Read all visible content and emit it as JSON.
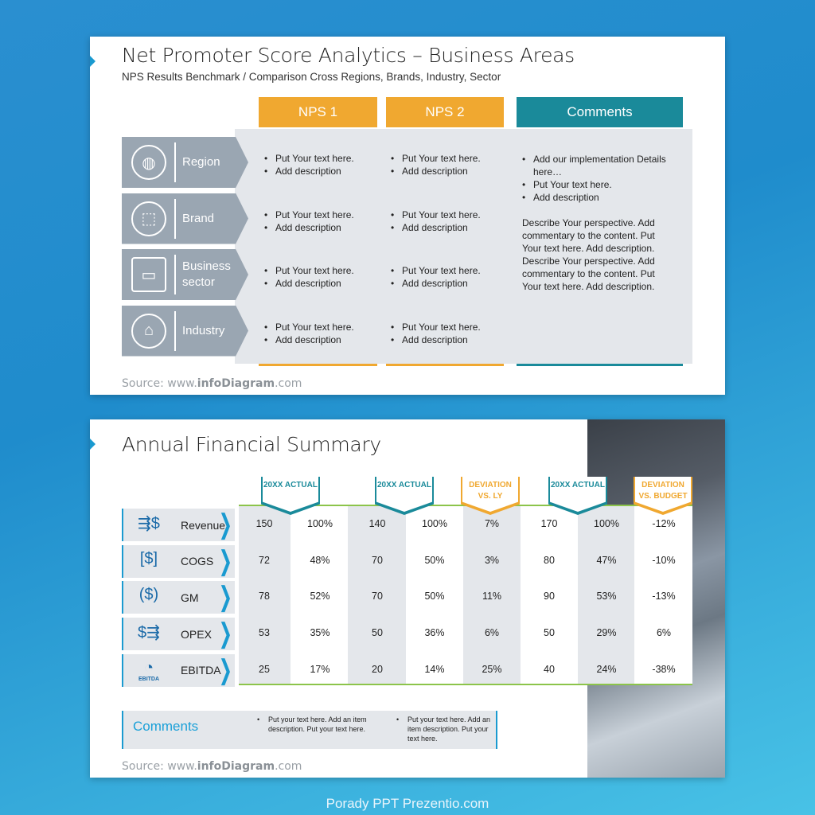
{
  "slide1": {
    "title": "Net Promoter Score Analytics – Business Areas",
    "subtitle": "NPS Results Benchmark / Comparison Cross Regions, Brands, Industry, Sector",
    "columns": [
      "NPS 1",
      "NPS 2",
      "Comments"
    ],
    "colors": {
      "nps": "#F0A830",
      "comments": "#1A8A9A",
      "row": "#9AA6B2"
    },
    "rows": [
      {
        "label": "Region",
        "icon": "globe-icon",
        "nps1": [
          "Put Your text here.",
          "Add description"
        ],
        "nps2": [
          "Put Your text here.",
          "Add description"
        ]
      },
      {
        "label": "Brand",
        "icon": "tags-icon",
        "nps1": [
          "Put Your text here.",
          "Add description"
        ],
        "nps2": [
          "Put Your text here.",
          "Add description"
        ]
      },
      {
        "label": "Business sector",
        "icon": "toolbox-icon",
        "nps1": [
          "Put Your text here.",
          "Add description"
        ],
        "nps2": [
          "Put Your text here.",
          "Add description"
        ]
      },
      {
        "label": "Industry",
        "icon": "factory-icon",
        "nps1": [
          "Put Your text here.",
          "Add description"
        ],
        "nps2": [
          "Put Your text here.",
          "Add description"
        ]
      }
    ],
    "comments": {
      "bullets": [
        "Add our implementation Details here…",
        "Put Your text here.",
        "Add description"
      ],
      "paragraph": "Describe Your perspective. Add commentary to the content. Put Your text here. Add description. Describe Your perspective. Add commentary to the content. Put Your text here. Add description."
    },
    "source_prefix": "Source: www.",
    "source_brand": "infoDiagram",
    "source_suffix": ".com"
  },
  "slide2": {
    "title": "Annual Financial Summary",
    "headers": [
      {
        "text": "20XX ACTUAL",
        "style": "teal"
      },
      {
        "text": "20XX ACTUAL",
        "style": "teal"
      },
      {
        "text": "DEVIATION VS. LY",
        "style": "orange"
      },
      {
        "text": "20XX ACTUAL",
        "style": "teal"
      },
      {
        "text": "DEVIATION VS. BUDGET",
        "style": "orange"
      }
    ],
    "rows": [
      {
        "label": "Revenue",
        "icon": "revenue-moneybag-icon",
        "values": [
          "150",
          "100%",
          "140",
          "100%",
          "7%",
          "170",
          "100%",
          "-12%"
        ]
      },
      {
        "label": "COGS",
        "icon": "cost-box-icon",
        "values": [
          "72",
          "48%",
          "70",
          "50%",
          "3%",
          "80",
          "47%",
          "-10%"
        ]
      },
      {
        "label": "GM",
        "icon": "moneybag-icon",
        "values": [
          "78",
          "52%",
          "70",
          "50%",
          "11%",
          "90",
          "53%",
          "-13%"
        ]
      },
      {
        "label": "OPEX",
        "icon": "opex-moneybag-icon",
        "values": [
          "53",
          "35%",
          "50",
          "36%",
          "6%",
          "50",
          "29%",
          "6%"
        ]
      },
      {
        "label": "EBITDA",
        "icon": "pie-chart-icon",
        "icon_caption": "EBITDA",
        "values": [
          "25",
          "17%",
          "20",
          "14%",
          "25%",
          "40",
          "24%",
          "-38%"
        ]
      }
    ],
    "comments_label": "Comments",
    "comments": [
      "Put your text here.  Add an item description. Put your text here.",
      "Put your text here.  Add an item description. Put your text here."
    ],
    "source_prefix": "Source: www.",
    "source_brand": "infoDiagram",
    "source_suffix": ".com"
  },
  "footer": "Porady PPT Prezentio.com"
}
